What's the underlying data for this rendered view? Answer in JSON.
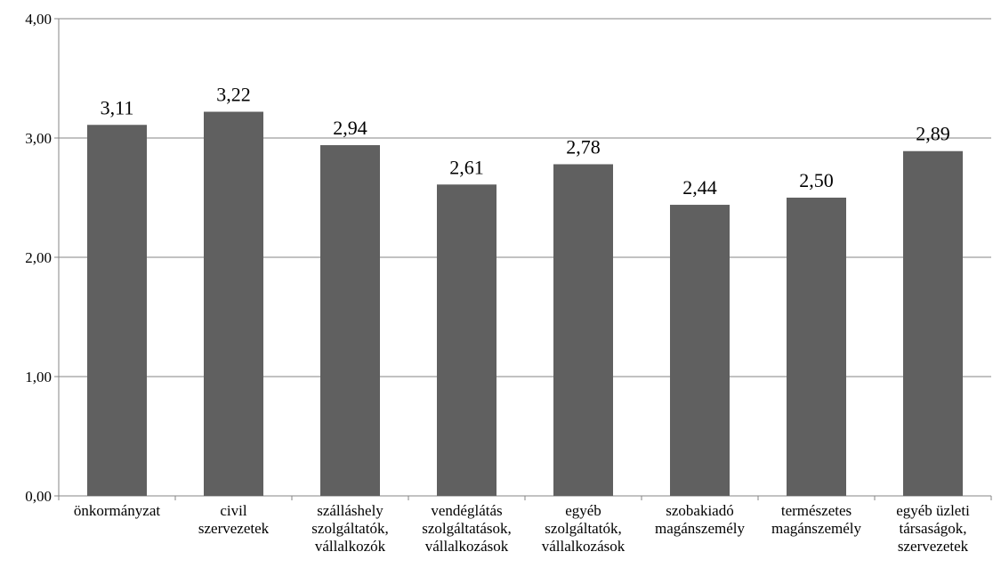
{
  "chart_data": {
    "type": "bar",
    "title": "",
    "xlabel": "",
    "ylabel": "",
    "ylim": [
      0,
      4
    ],
    "yticks": [
      "0,00",
      "1,00",
      "2,00",
      "3,00",
      "4,00"
    ],
    "grid": true,
    "legend": "none",
    "bar_color": "#606060",
    "categories": [
      [
        "önkormányzat"
      ],
      [
        "civil",
        "szervezetek"
      ],
      [
        "szálláshely",
        "szolgáltatók,",
        "vállalkozók"
      ],
      [
        "vendéglátás",
        "szolgáltatások,",
        "vállalkozások"
      ],
      [
        "egyéb",
        "szolgáltatók,",
        "vállalkozások"
      ],
      [
        "szobakiadó",
        "magánszemély"
      ],
      [
        "természetes",
        "magánszemély"
      ],
      [
        "egyéb üzleti",
        "társaságok,",
        "szervezetek"
      ]
    ],
    "values": [
      3.11,
      3.22,
      2.94,
      2.61,
      2.78,
      2.44,
      2.5,
      2.89
    ],
    "value_labels": [
      "3,11",
      "3,22",
      "2,94",
      "2,61",
      "2,78",
      "2,44",
      "2,50",
      "2,89"
    ]
  }
}
